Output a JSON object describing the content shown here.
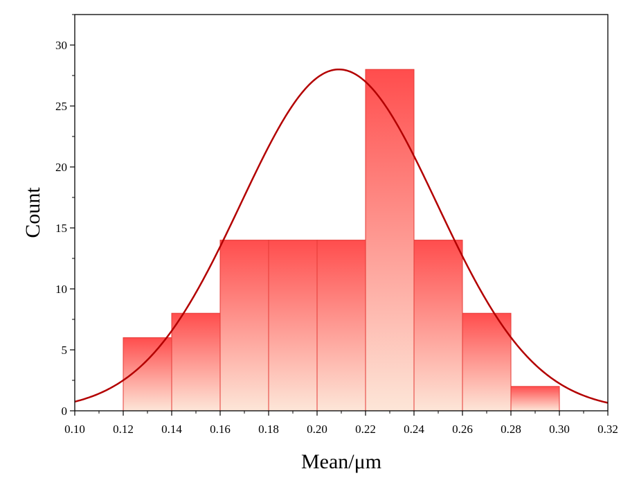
{
  "chart_data": {
    "type": "bar",
    "xlabel": "Mean/μm",
    "ylabel": "Count",
    "xlim": [
      0.1,
      0.32
    ],
    "ylim": [
      0,
      32.5
    ],
    "x_ticks": [
      "0.10",
      "0.12",
      "0.14",
      "0.16",
      "0.18",
      "0.20",
      "0.22",
      "0.24",
      "0.26",
      "0.28",
      "0.30",
      "0.32"
    ],
    "y_ticks": [
      "0",
      "5",
      "10",
      "15",
      "20",
      "25",
      "30"
    ],
    "bin_edges": [
      0.12,
      0.14,
      0.16,
      0.18,
      0.2,
      0.22,
      0.24,
      0.26,
      0.28,
      0.3
    ],
    "values": [
      6,
      8,
      14,
      14,
      14,
      28,
      14,
      8,
      2
    ],
    "fit_curve": {
      "type": "normal",
      "mean": 0.209,
      "sd": 0.0405,
      "peak": 28
    },
    "bar_color_top": "#ff4d4d",
    "bar_color_bottom": "#fde6d8",
    "bar_edge_color": "#e53935",
    "curve_color": "#b30000",
    "grid": false
  }
}
